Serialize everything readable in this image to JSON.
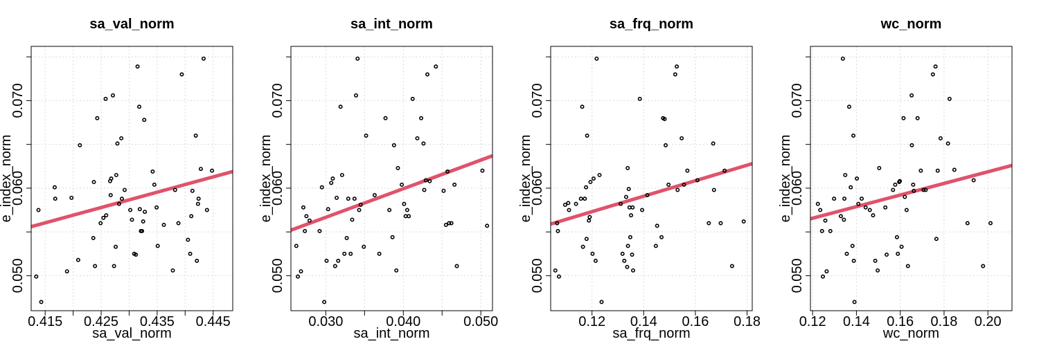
{
  "chart_data": [
    {
      "type": "scatter",
      "title": "sa_val_norm",
      "xlabel": "sa_val_norm",
      "ylabel": "e_index_norm",
      "xlim": [
        0.4125,
        0.4485
      ],
      "ylim": [
        0.046,
        0.0762
      ],
      "xticks": [
        0.415,
        0.42,
        0.425,
        0.43,
        0.435,
        0.44,
        0.445
      ],
      "xtick_labels": [
        "0.415",
        "",
        "0.425",
        "",
        "0.435",
        "",
        "0.445"
      ],
      "yticks": [
        0.05,
        0.055,
        0.06,
        0.065,
        0.07,
        0.075
      ],
      "ytick_labels": [
        "0.050",
        "",
        "0.060",
        "",
        "0.070",
        ""
      ],
      "fit_line": [
        [
          0.4125,
          0.0556
        ],
        [
          0.4485,
          0.0619
        ]
      ],
      "x": [
        0.4134,
        0.4138,
        0.4143,
        0.4167,
        0.4168,
        0.4189,
        0.4197,
        0.4209,
        0.4212,
        0.4236,
        0.4237,
        0.4239,
        0.4243,
        0.4249,
        0.4254,
        0.4258,
        0.4259,
        0.4266,
        0.4267,
        0.4268,
        0.4271,
        0.4273,
        0.4276,
        0.4277,
        0.4279,
        0.4282,
        0.4286,
        0.4287,
        0.4292,
        0.4302,
        0.4305,
        0.4309,
        0.4312,
        0.4315,
        0.4318,
        0.4319,
        0.4321,
        0.4323,
        0.4325,
        0.4327,
        0.4328,
        0.4342,
        0.4345,
        0.4349,
        0.4351,
        0.4362,
        0.4378,
        0.4382,
        0.4388,
        0.4394,
        0.4405,
        0.4409,
        0.4411,
        0.4413,
        0.4419,
        0.4421,
        0.4423,
        0.4424,
        0.4428,
        0.4433,
        0.4439,
        0.4448
      ],
      "y": [
        0.0499,
        0.0575,
        0.047,
        0.0601,
        0.0588,
        0.0505,
        0.0589,
        0.0518,
        0.0649,
        0.0543,
        0.0607,
        0.0511,
        0.068,
        0.056,
        0.0566,
        0.0702,
        0.0569,
        0.0608,
        0.0592,
        0.0611,
        0.0706,
        0.0511,
        0.0533,
        0.0615,
        0.0651,
        0.0582,
        0.0657,
        0.0588,
        0.0598,
        0.0575,
        0.0564,
        0.0525,
        0.0524,
        0.0739,
        0.0693,
        0.0576,
        0.0551,
        0.0551,
        0.0562,
        0.0678,
        0.0573,
        0.0619,
        0.0604,
        0.0578,
        0.0534,
        0.0558,
        0.0506,
        0.0598,
        0.056,
        0.073,
        0.0541,
        0.0525,
        0.0568,
        0.0597,
        0.066,
        0.0517,
        0.0582,
        0.0588,
        0.0622,
        0.0748,
        0.0575,
        0.062
      ]
    },
    {
      "type": "scatter",
      "title": "sa_int_norm",
      "xlabel": "sa_int_norm",
      "ylabel": "e_index_norm",
      "xlim": [
        0.0255,
        0.0515
      ],
      "ylim": [
        0.046,
        0.0762
      ],
      "xticks": [
        0.03,
        0.035,
        0.04,
        0.045,
        0.05
      ],
      "xtick_labels": [
        "0.030",
        "",
        "0.040",
        "",
        "0.050"
      ],
      "yticks": [
        0.05,
        0.055,
        0.06,
        0.065,
        0.07,
        0.075
      ],
      "ytick_labels": [
        "0.050",
        "",
        "0.060",
        "",
        "0.070",
        ""
      ],
      "fit_line": [
        [
          0.0255,
          0.0552
        ],
        [
          0.0515,
          0.0637
        ]
      ],
      "x": [
        0.0262,
        0.0264,
        0.0268,
        0.0271,
        0.0273,
        0.0275,
        0.0279,
        0.0292,
        0.0295,
        0.0298,
        0.0301,
        0.0303,
        0.0307,
        0.0309,
        0.0312,
        0.0314,
        0.0316,
        0.0319,
        0.0321,
        0.0324,
        0.0327,
        0.0329,
        0.0332,
        0.0334,
        0.0337,
        0.0339,
        0.0341,
        0.0343,
        0.0345,
        0.0349,
        0.0352,
        0.0363,
        0.0369,
        0.0377,
        0.0382,
        0.0386,
        0.0388,
        0.0391,
        0.0393,
        0.0398,
        0.0401,
        0.0403,
        0.0405,
        0.0407,
        0.0412,
        0.0418,
        0.0423,
        0.0426,
        0.0427,
        0.0429,
        0.0431,
        0.0434,
        0.0442,
        0.0452,
        0.0455,
        0.0457,
        0.0459,
        0.0462,
        0.0466,
        0.0469,
        0.0502,
        0.0508
      ],
      "y": [
        0.0534,
        0.0499,
        0.0505,
        0.0578,
        0.0551,
        0.0568,
        0.0563,
        0.0551,
        0.0601,
        0.047,
        0.0517,
        0.0576,
        0.0606,
        0.0611,
        0.0511,
        0.0589,
        0.0517,
        0.0693,
        0.0615,
        0.0525,
        0.0543,
        0.0588,
        0.0525,
        0.0564,
        0.0588,
        0.0706,
        0.0748,
        0.0575,
        0.0581,
        0.0533,
        0.066,
        0.0592,
        0.0525,
        0.068,
        0.0575,
        0.0544,
        0.0649,
        0.0506,
        0.0623,
        0.0604,
        0.0582,
        0.0568,
        0.0575,
        0.0568,
        0.0702,
        0.0657,
        0.068,
        0.0651,
        0.0598,
        0.0609,
        0.073,
        0.0608,
        0.0739,
        0.0597,
        0.0558,
        0.0619,
        0.056,
        0.056,
        0.0604,
        0.0511,
        0.062,
        0.0557
      ]
    },
    {
      "type": "scatter",
      "title": "sa_frq_norm",
      "xlabel": "sa_frq_norm",
      "ylabel": "e_index_norm",
      "xlim": [
        0.104,
        0.182
      ],
      "ylim": [
        0.046,
        0.0762
      ],
      "xticks": [
        0.12,
        0.14,
        0.16,
        0.18
      ],
      "xtick_labels": [
        "0.12",
        "0.14",
        "0.16",
        "0.18"
      ],
      "yticks": [
        0.05,
        0.055,
        0.06,
        0.065,
        0.07,
        0.075
      ],
      "ytick_labels": [
        "0.050",
        "",
        "0.060",
        "",
        "0.070",
        ""
      ],
      "fit_line": [
        [
          0.104,
          0.0559
        ],
        [
          0.182,
          0.0628
        ]
      ],
      "x": [
        0.1058,
        0.1065,
        0.1068,
        0.1072,
        0.1096,
        0.1108,
        0.1111,
        0.1138,
        0.1157,
        0.1162,
        0.1165,
        0.1172,
        0.1177,
        0.1179,
        0.1181,
        0.1188,
        0.1191,
        0.1194,
        0.1202,
        0.1206,
        0.1214,
        0.1218,
        0.1229,
        0.1237,
        0.1311,
        0.1318,
        0.1325,
        0.1332,
        0.1336,
        0.1338,
        0.1339,
        0.1342,
        0.1345,
        0.1348,
        0.1351,
        0.1355,
        0.1357,
        0.1359,
        0.1385,
        0.1394,
        0.1414,
        0.1447,
        0.1452,
        0.1469,
        0.1475,
        0.1481,
        0.1485,
        0.1496,
        0.1522,
        0.1528,
        0.1531,
        0.1547,
        0.1556,
        0.1569,
        0.1608,
        0.1652,
        0.1669,
        0.1672,
        0.1698,
        0.1713,
        0.1742,
        0.1787
      ],
      "y": [
        0.0506,
        0.056,
        0.0551,
        0.0499,
        0.0581,
        0.0583,
        0.0575,
        0.0582,
        0.0588,
        0.0693,
        0.0533,
        0.0588,
        0.0601,
        0.0542,
        0.066,
        0.0563,
        0.0567,
        0.0607,
        0.0525,
        0.0611,
        0.0517,
        0.0748,
        0.0615,
        0.047,
        0.0582,
        0.0525,
        0.0517,
        0.059,
        0.051,
        0.0623,
        0.0534,
        0.0599,
        0.0578,
        0.0544,
        0.0569,
        0.0524,
        0.0578,
        0.0506,
        0.0702,
        0.0575,
        0.0592,
        0.0534,
        0.0557,
        0.0544,
        0.068,
        0.0679,
        0.0649,
        0.0604,
        0.073,
        0.0739,
        0.0598,
        0.0657,
        0.0604,
        0.062,
        0.0609,
        0.056,
        0.0651,
        0.0598,
        0.056,
        0.062,
        0.0511,
        0.0562
      ]
    },
    {
      "type": "scatter",
      "title": "wc_norm",
      "xlabel": "wc_norm",
      "ylabel": "e_index_norm",
      "xlim": [
        0.119,
        0.211
      ],
      "ylim": [
        0.046,
        0.0762
      ],
      "xticks": [
        0.12,
        0.14,
        0.16,
        0.18,
        0.2
      ],
      "xtick_labels": [
        "0.12",
        "0.14",
        "0.16",
        "0.18",
        "0.20"
      ],
      "yticks": [
        0.05,
        0.055,
        0.06,
        0.065,
        0.07,
        0.075
      ],
      "ytick_labels": [
        "0.050",
        "",
        "0.060",
        "",
        "0.070",
        ""
      ],
      "fit_line": [
        [
          0.119,
          0.0565
        ],
        [
          0.211,
          0.0626
        ]
      ],
      "x": [
        0.1224,
        0.1235,
        0.1243,
        0.1247,
        0.1258,
        0.1264,
        0.1281,
        0.1298,
        0.1329,
        0.1338,
        0.1343,
        0.1345,
        0.1349,
        0.1356,
        0.1367,
        0.1374,
        0.1382,
        0.1386,
        0.1388,
        0.1391,
        0.1402,
        0.1409,
        0.1424,
        0.1442,
        0.1461,
        0.1476,
        0.1486,
        0.1497,
        0.1504,
        0.1532,
        0.1538,
        0.1567,
        0.1577,
        0.1585,
        0.1589,
        0.1595,
        0.1598,
        0.1606,
        0.1615,
        0.1621,
        0.1629,
        0.1635,
        0.1652,
        0.1653,
        0.1659,
        0.1662,
        0.1679,
        0.1694,
        0.1706,
        0.1716,
        0.1749,
        0.1761,
        0.1765,
        0.1771,
        0.1784,
        0.1818,
        0.1825,
        0.1847,
        0.1907,
        0.1935,
        0.1978,
        0.2012
      ],
      "y": [
        0.0582,
        0.0575,
        0.0551,
        0.0499,
        0.0563,
        0.0505,
        0.0551,
        0.0588,
        0.0568,
        0.0748,
        0.0564,
        0.0588,
        0.0615,
        0.0525,
        0.0693,
        0.0601,
        0.0534,
        0.066,
        0.0517,
        0.047,
        0.0611,
        0.0582,
        0.0588,
        0.0578,
        0.0575,
        0.0569,
        0.0517,
        0.0506,
        0.0623,
        0.0578,
        0.0524,
        0.0598,
        0.0604,
        0.0544,
        0.0525,
        0.0607,
        0.0608,
        0.0533,
        0.068,
        0.059,
        0.0575,
        0.0511,
        0.0706,
        0.0649,
        0.0604,
        0.0597,
        0.068,
        0.062,
        0.0598,
        0.0598,
        0.073,
        0.0739,
        0.0542,
        0.062,
        0.0657,
        0.0651,
        0.0702,
        0.0621,
        0.056,
        0.0609,
        0.0511,
        0.056
      ]
    }
  ]
}
